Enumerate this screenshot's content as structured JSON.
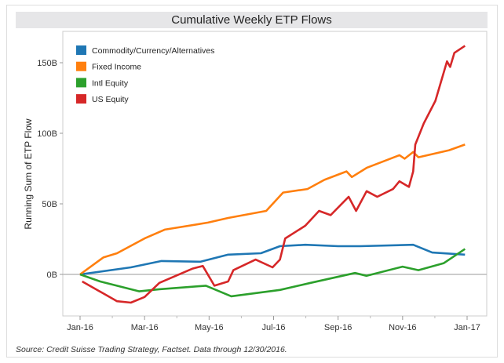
{
  "chart_data": {
    "type": "line",
    "title": "Cumulative Weekly ETP Flows",
    "xlabel": "",
    "ylabel": "Running Sum of ETP Flow",
    "x_ticks": [
      "Jan-16",
      "Mar-16",
      "May-16",
      "Jul-16",
      "Sep-16",
      "Nov-16",
      "Jan-17"
    ],
    "y_ticks": [
      "0B",
      "50B",
      "100B",
      "150B"
    ],
    "ylim": [
      -25,
      165
    ],
    "xlim": [
      "2016-01-01",
      "2017-01-01"
    ],
    "grid": "zero line only",
    "legend_position": "top-left",
    "series": [
      {
        "name": "Commodity/Currency/Alternatives",
        "color": "#1f77b4",
        "x": [
          "2016-01-01",
          "2016-02-18",
          "2016-03-18",
          "2016-04-24",
          "2016-05-20",
          "2016-06-20",
          "2016-07-08",
          "2016-08-01",
          "2016-09-01",
          "2016-09-22",
          "2016-11-11",
          "2016-11-29",
          "2016-12-30"
        ],
        "y": [
          0,
          5,
          9.5,
          9,
          14,
          15,
          20,
          21,
          20,
          20,
          21,
          15.5,
          14
        ]
      },
      {
        "name": "Fixed Income",
        "color": "#ff7f0e",
        "x": [
          "2016-01-01",
          "2016-01-23",
          "2016-02-05",
          "2016-03-02",
          "2016-03-21",
          "2016-05-01",
          "2016-05-20",
          "2016-06-25",
          "2016-07-11",
          "2016-08-03",
          "2016-08-19",
          "2016-09-09",
          "2016-09-14",
          "2016-09-28",
          "2016-10-29",
          "2016-11-03",
          "2016-11-11",
          "2016-11-16",
          "2016-12-15",
          "2016-12-30"
        ],
        "y": [
          0,
          12,
          15,
          25.5,
          31.7,
          36.7,
          40,
          45,
          58,
          60.5,
          67,
          73,
          69,
          75.5,
          84.5,
          82,
          86.7,
          83,
          88,
          92
        ]
      },
      {
        "name": "Intl Equity",
        "color": "#2ca02c",
        "x": [
          "2016-01-01",
          "2016-01-20",
          "2016-02-26",
          "2016-03-16",
          "2016-04-29",
          "2016-05-23",
          "2016-07-08",
          "2016-08-06",
          "2016-09-17",
          "2016-09-28",
          "2016-11-01",
          "2016-11-16",
          "2016-12-10",
          "2016-12-30"
        ],
        "y": [
          0,
          -5,
          -12,
          -10.5,
          -8,
          -15.5,
          -11,
          -6,
          1,
          -1,
          5.5,
          3,
          8,
          18
        ]
      },
      {
        "name": "US Equity",
        "color": "#d62728",
        "x": [
          "2016-01-03",
          "2016-02-05",
          "2016-02-18",
          "2016-03-02",
          "2016-03-16",
          "2016-04-16",
          "2016-04-26",
          "2016-05-07",
          "2016-05-20",
          "2016-05-25",
          "2016-06-15",
          "2016-07-01",
          "2016-07-08",
          "2016-07-13",
          "2016-08-01",
          "2016-08-14",
          "2016-08-25",
          "2016-09-11",
          "2016-09-18",
          "2016-09-28",
          "2016-10-08",
          "2016-10-23",
          "2016-10-29",
          "2016-11-07",
          "2016-11-11",
          "2016-11-13",
          "2016-11-21",
          "2016-12-02",
          "2016-12-13",
          "2016-12-16",
          "2016-12-20",
          "2016-12-30"
        ],
        "y": [
          -5,
          -19,
          -20,
          -16,
          -6,
          4,
          6,
          -8,
          -5,
          3,
          10.5,
          5,
          10.5,
          25.5,
          34.5,
          45,
          42,
          55,
          45,
          59,
          55,
          60.5,
          66,
          62,
          73,
          92,
          107,
          123,
          151,
          147,
          157,
          162
        ]
      }
    ]
  },
  "footer": "Source: Credit Suisse Trading Strategy, Factset.  Data through 12/30/2016."
}
